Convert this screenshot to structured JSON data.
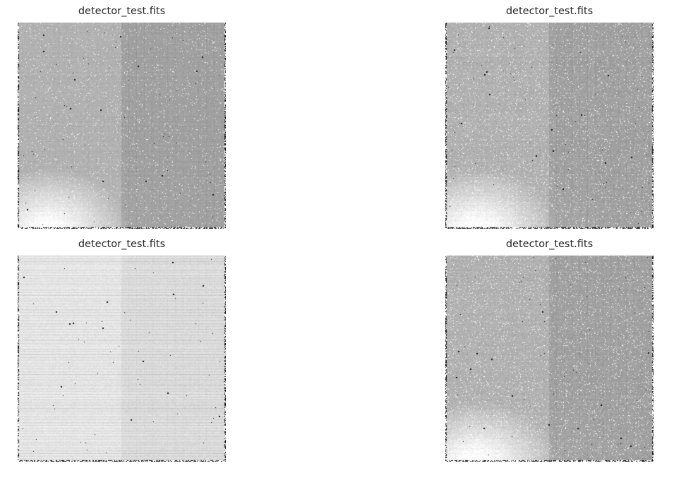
{
  "figure": {
    "panels": [
      {
        "title": "detector_test.fits",
        "stretch": "linear",
        "image_kind": "detector-frame"
      },
      {
        "title": "detector_test.fits",
        "stretch": "contrast",
        "image_kind": "detector-frame"
      },
      {
        "title": "detector_test.fits",
        "stretch": "wide",
        "image_kind": "detector-frame"
      },
      {
        "title": "detector_test.fits",
        "stretch": "contrast",
        "image_kind": "detector-frame"
      }
    ]
  }
}
